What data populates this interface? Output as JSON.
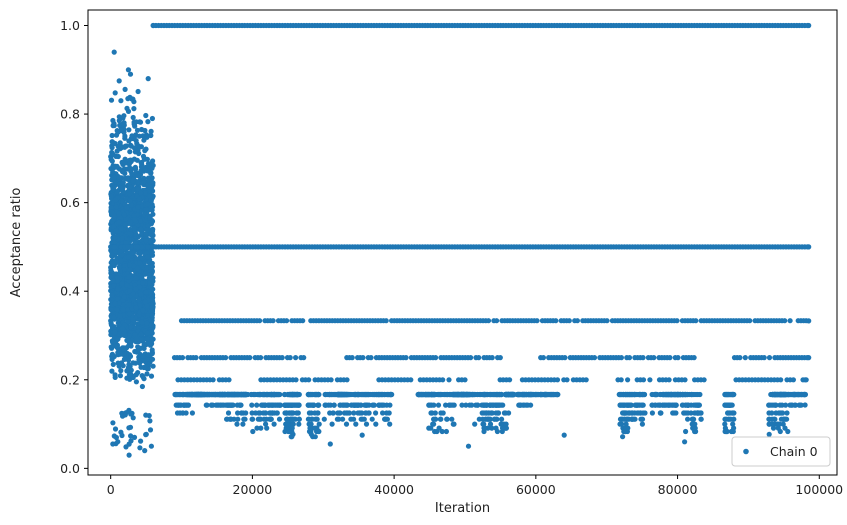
{
  "chart_data": {
    "type": "scatter",
    "title": "",
    "xlabel": "Iteration",
    "ylabel": "Acceptance ratio",
    "xlim": [
      -3200,
      102500
    ],
    "ylim": [
      -0.015,
      1.035
    ],
    "xticks": [
      0,
      20000,
      40000,
      60000,
      80000,
      100000
    ],
    "xtick_labels": [
      "0",
      "20000",
      "40000",
      "60000",
      "80000",
      "100000"
    ],
    "yticks": [
      0.0,
      0.2,
      0.4,
      0.6,
      0.8,
      1.0
    ],
    "ytick_labels": [
      "0.0",
      "0.2",
      "0.4",
      "0.6",
      "0.8",
      "1.0"
    ],
    "grid": false,
    "legend": {
      "position": "lower-right",
      "entries": [
        "Chain 0"
      ]
    },
    "series": [
      {
        "name": "Chain 0",
        "color": "#1f77b4",
        "marker": "circle",
        "description_of_pattern": {
          "burn_in_range": [
            0,
            6000
          ],
          "burn_in_values_range": [
            0.03,
            0.94
          ],
          "post_burn_in_levels": [
            1.0,
            0.5,
            0.333,
            0.25,
            0.2,
            0.167,
            0.143,
            0.125,
            0.111,
            0.1
          ],
          "x_max": 98500
        },
        "sample_points": [
          {
            "x": 500,
            "y": 0.94
          },
          {
            "x": 2500,
            "y": 0.9
          },
          {
            "x": 2800,
            "y": 0.89
          },
          {
            "x": 5300,
            "y": 0.88
          },
          {
            "x": 1200,
            "y": 0.875
          },
          {
            "x": 2600,
            "y": 0.03
          },
          {
            "x": 4800,
            "y": 0.04
          },
          {
            "x": 300,
            "y": 0.055
          },
          {
            "x": 6000,
            "y": 1.0
          },
          {
            "x": 98500,
            "y": 1.0
          },
          {
            "x": 6000,
            "y": 0.5
          },
          {
            "x": 98500,
            "y": 0.5
          },
          {
            "x": 98500,
            "y": 0.333
          },
          {
            "x": 98500,
            "y": 0.25
          },
          {
            "x": 98000,
            "y": 0.2
          },
          {
            "x": 98000,
            "y": 0.143
          },
          {
            "x": 31000,
            "y": 0.055
          },
          {
            "x": 50500,
            "y": 0.05
          },
          {
            "x": 81000,
            "y": 0.06
          },
          {
            "x": 35500,
            "y": 0.075
          },
          {
            "x": 64000,
            "y": 0.075
          }
        ]
      }
    ]
  }
}
